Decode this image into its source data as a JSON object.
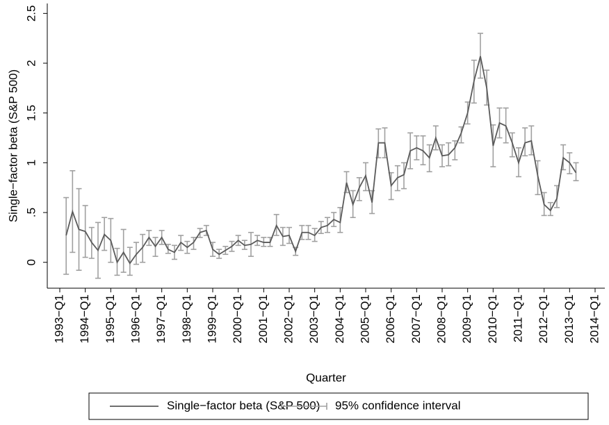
{
  "chart_data": {
    "type": "line_ci",
    "y_label": "Single−factor beta (S&P 500)",
    "x_label": "Quarter",
    "categories": [
      "1993−Q1",
      null,
      null,
      null,
      "1994−Q1",
      null,
      null,
      null,
      "1995−Q1",
      null,
      null,
      null,
      "1996−Q1",
      null,
      null,
      null,
      "1997−Q1",
      null,
      null,
      null,
      "1998−Q1",
      null,
      null,
      null,
      "1999−Q1",
      null,
      null,
      null,
      "2000−Q1",
      null,
      null,
      null,
      "2001−Q1",
      null,
      null,
      null,
      "2002−Q1",
      null,
      null,
      null,
      "2003−Q1",
      null,
      null,
      null,
      "2004−Q1",
      null,
      null,
      null,
      "2005−Q1",
      null,
      null,
      null,
      "2006−Q1",
      null,
      null,
      null,
      "2007−Q1",
      null,
      null,
      null,
      "2008−Q1",
      null,
      null,
      null,
      "2009−Q1",
      null,
      null,
      null,
      "2010−Q1",
      null,
      null,
      null,
      "2011−Q1",
      null,
      null,
      null,
      "2012−Q1",
      null,
      null,
      null,
      "2013−Q1",
      null,
      null,
      null,
      "2014−Q1"
    ],
    "series": [
      {
        "name": "Single−factor beta (S&P 500)",
        "color": "#5a5a5a",
        "values": [
          null,
          0.27,
          0.51,
          0.33,
          0.31,
          0.2,
          0.12,
          0.28,
          0.22,
          0.0,
          0.1,
          -0.01,
          0.08,
          0.15,
          0.25,
          0.16,
          0.25,
          0.13,
          0.1,
          0.2,
          0.15,
          0.2,
          0.3,
          0.32,
          0.13,
          0.08,
          0.12,
          0.16,
          0.22,
          0.17,
          0.18,
          0.22,
          0.2,
          0.2,
          0.37,
          0.26,
          0.27,
          0.11,
          0.3,
          0.3,
          0.27,
          0.35,
          0.37,
          0.43,
          0.4,
          0.8,
          0.58,
          0.75,
          0.87,
          0.6,
          1.2,
          1.2,
          0.77,
          0.85,
          0.88,
          1.12,
          1.15,
          1.12,
          1.05,
          1.25,
          1.07,
          1.08,
          1.15,
          1.3,
          1.5,
          1.82,
          2.07,
          1.75,
          1.17,
          1.4,
          1.37,
          1.2,
          1.0,
          1.2,
          1.22,
          0.87,
          0.58,
          0.52,
          0.64,
          1.05,
          1.0,
          0.9,
          null,
          null,
          null
        ]
      },
      {
        "name": "95% confidence interval",
        "color": "#a0a0a0",
        "lower": [
          null,
          -0.12,
          0.1,
          -0.08,
          0.05,
          0.04,
          -0.16,
          0.12,
          0,
          -0.13,
          -0.1,
          -0.13,
          -0.02,
          0.0,
          0.17,
          0.06,
          0.18,
          0.09,
          0.03,
          0.12,
          0.09,
          0.13,
          0.25,
          0.27,
          0.06,
          0.04,
          0.08,
          0.11,
          0.17,
          0.13,
          0.06,
          0.17,
          0.16,
          0.16,
          0.27,
          0.17,
          0.19,
          0.07,
          0.23,
          0.23,
          0.21,
          0.29,
          0.3,
          0.36,
          0.3,
          0.7,
          0.45,
          0.62,
          0.72,
          0.49,
          1.05,
          1.05,
          0.63,
          0.72,
          0.74,
          0.94,
          1.03,
          0.98,
          0.91,
          1.13,
          0.96,
          0.97,
          1.03,
          1.2,
          1.39,
          1.6,
          1.85,
          1.58,
          0.96,
          1.25,
          1.2,
          1.06,
          0.86,
          1.07,
          1.08,
          0.68,
          0.47,
          0.47,
          0.55,
          0.93,
          0.89,
          0.82,
          null,
          null,
          null
        ],
        "upper": [
          null,
          0.65,
          0.92,
          0.74,
          0.57,
          0.35,
          0.4,
          0.45,
          0.44,
          0.14,
          0.33,
          0.15,
          0.2,
          0.28,
          0.32,
          0.25,
          0.32,
          0.18,
          0.17,
          0.27,
          0.21,
          0.25,
          0.34,
          0.37,
          0.2,
          0.13,
          0.16,
          0.21,
          0.27,
          0.22,
          0.3,
          0.27,
          0.25,
          0.25,
          0.48,
          0.35,
          0.35,
          0.15,
          0.37,
          0.37,
          0.34,
          0.41,
          0.45,
          0.5,
          0.55,
          0.91,
          0.72,
          0.85,
          1.0,
          0.72,
          1.34,
          1.35,
          0.9,
          0.97,
          1.0,
          1.3,
          1.27,
          1.27,
          1.18,
          1.37,
          1.18,
          1.2,
          1.22,
          1.36,
          1.61,
          2.03,
          2.3,
          1.93,
          1.38,
          1.55,
          1.55,
          1.3,
          1.15,
          1.35,
          1.37,
          1.02,
          0.7,
          0.6,
          0.77,
          1.18,
          1.1,
          1.0,
          null,
          null,
          null
        ]
      }
    ],
    "ylim": [
      -0.26,
      2.6
    ],
    "yticks": [
      0,
      {
        "value": 0.5,
        "label": ".5"
      },
      1,
      1.5,
      2,
      2.5
    ],
    "grid": false
  }
}
